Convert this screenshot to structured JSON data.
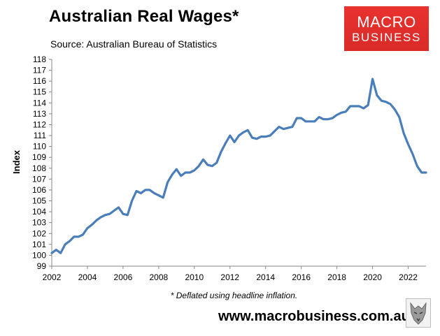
{
  "header": {
    "title": "Australian Real Wages*",
    "subtitle": "Source: Australian Bureau of Statistics"
  },
  "logo": {
    "line1": "MACRO",
    "line2": "BUSINESS",
    "color": "#e3302d",
    "icon": "wolf-icon"
  },
  "footer": {
    "note": "* Deflated using headline inflation.",
    "url": "www.macrobusiness.com.au"
  },
  "chart_data": {
    "type": "line",
    "title": "Australian Real Wages*",
    "xlabel": "",
    "ylabel": "Index",
    "xlim": [
      2002,
      2023
    ],
    "ylim": [
      99,
      118
    ],
    "x_ticks": [
      2002,
      2004,
      2006,
      2008,
      2010,
      2012,
      2014,
      2016,
      2018,
      2020,
      2022
    ],
    "y_ticks": [
      99,
      100,
      101,
      102,
      103,
      104,
      105,
      106,
      107,
      108,
      109,
      110,
      111,
      112,
      113,
      114,
      115,
      116,
      117,
      118
    ],
    "grid": false,
    "legend": "none",
    "series": [
      {
        "color": "#4a7ebb",
        "points": [
          [
            2002.0,
            100.2
          ],
          [
            2002.25,
            100.5
          ],
          [
            2002.5,
            100.2
          ],
          [
            2002.75,
            101.0
          ],
          [
            2003.0,
            101.3
          ],
          [
            2003.25,
            101.7
          ],
          [
            2003.5,
            101.7
          ],
          [
            2003.75,
            101.9
          ],
          [
            2004.0,
            102.5
          ],
          [
            2004.25,
            102.8
          ],
          [
            2004.5,
            103.2
          ],
          [
            2004.75,
            103.5
          ],
          [
            2005.0,
            103.7
          ],
          [
            2005.25,
            103.8
          ],
          [
            2005.5,
            104.1
          ],
          [
            2005.75,
            104.4
          ],
          [
            2006.0,
            103.8
          ],
          [
            2006.25,
            103.7
          ],
          [
            2006.5,
            105.0
          ],
          [
            2006.75,
            105.9
          ],
          [
            2007.0,
            105.7
          ],
          [
            2007.25,
            106.0
          ],
          [
            2007.5,
            106.0
          ],
          [
            2007.75,
            105.7
          ],
          [
            2008.0,
            105.5
          ],
          [
            2008.25,
            105.3
          ],
          [
            2008.5,
            106.7
          ],
          [
            2008.75,
            107.4
          ],
          [
            2009.0,
            107.9
          ],
          [
            2009.25,
            107.3
          ],
          [
            2009.5,
            107.6
          ],
          [
            2009.75,
            107.6
          ],
          [
            2010.0,
            107.8
          ],
          [
            2010.25,
            108.2
          ],
          [
            2010.5,
            108.8
          ],
          [
            2010.75,
            108.3
          ],
          [
            2011.0,
            108.2
          ],
          [
            2011.25,
            108.5
          ],
          [
            2011.5,
            109.5
          ],
          [
            2011.75,
            110.3
          ],
          [
            2012.0,
            111.0
          ],
          [
            2012.25,
            110.4
          ],
          [
            2012.5,
            111.0
          ],
          [
            2012.75,
            111.3
          ],
          [
            2013.0,
            111.5
          ],
          [
            2013.25,
            110.8
          ],
          [
            2013.5,
            110.7
          ],
          [
            2013.75,
            110.9
          ],
          [
            2014.0,
            110.9
          ],
          [
            2014.25,
            111.0
          ],
          [
            2014.5,
            111.4
          ],
          [
            2014.75,
            111.8
          ],
          [
            2015.0,
            111.6
          ],
          [
            2015.25,
            111.7
          ],
          [
            2015.5,
            111.8
          ],
          [
            2015.75,
            112.6
          ],
          [
            2016.0,
            112.6
          ],
          [
            2016.25,
            112.3
          ],
          [
            2016.5,
            112.3
          ],
          [
            2016.75,
            112.3
          ],
          [
            2017.0,
            112.7
          ],
          [
            2017.25,
            112.5
          ],
          [
            2017.5,
            112.5
          ],
          [
            2017.75,
            112.6
          ],
          [
            2018.0,
            112.9
          ],
          [
            2018.25,
            113.1
          ],
          [
            2018.5,
            113.2
          ],
          [
            2018.75,
            113.7
          ],
          [
            2019.0,
            113.7
          ],
          [
            2019.25,
            113.7
          ],
          [
            2019.5,
            113.5
          ],
          [
            2019.75,
            113.8
          ],
          [
            2020.0,
            116.2
          ],
          [
            2020.25,
            114.7
          ],
          [
            2020.5,
            114.2
          ],
          [
            2020.75,
            114.1
          ],
          [
            2021.0,
            113.9
          ],
          [
            2021.25,
            113.4
          ],
          [
            2021.5,
            112.7
          ],
          [
            2021.75,
            111.2
          ],
          [
            2022.0,
            110.2
          ],
          [
            2022.25,
            109.3
          ],
          [
            2022.5,
            108.2
          ],
          [
            2022.75,
            107.6
          ],
          [
            2023.0,
            107.6
          ]
        ]
      }
    ]
  }
}
